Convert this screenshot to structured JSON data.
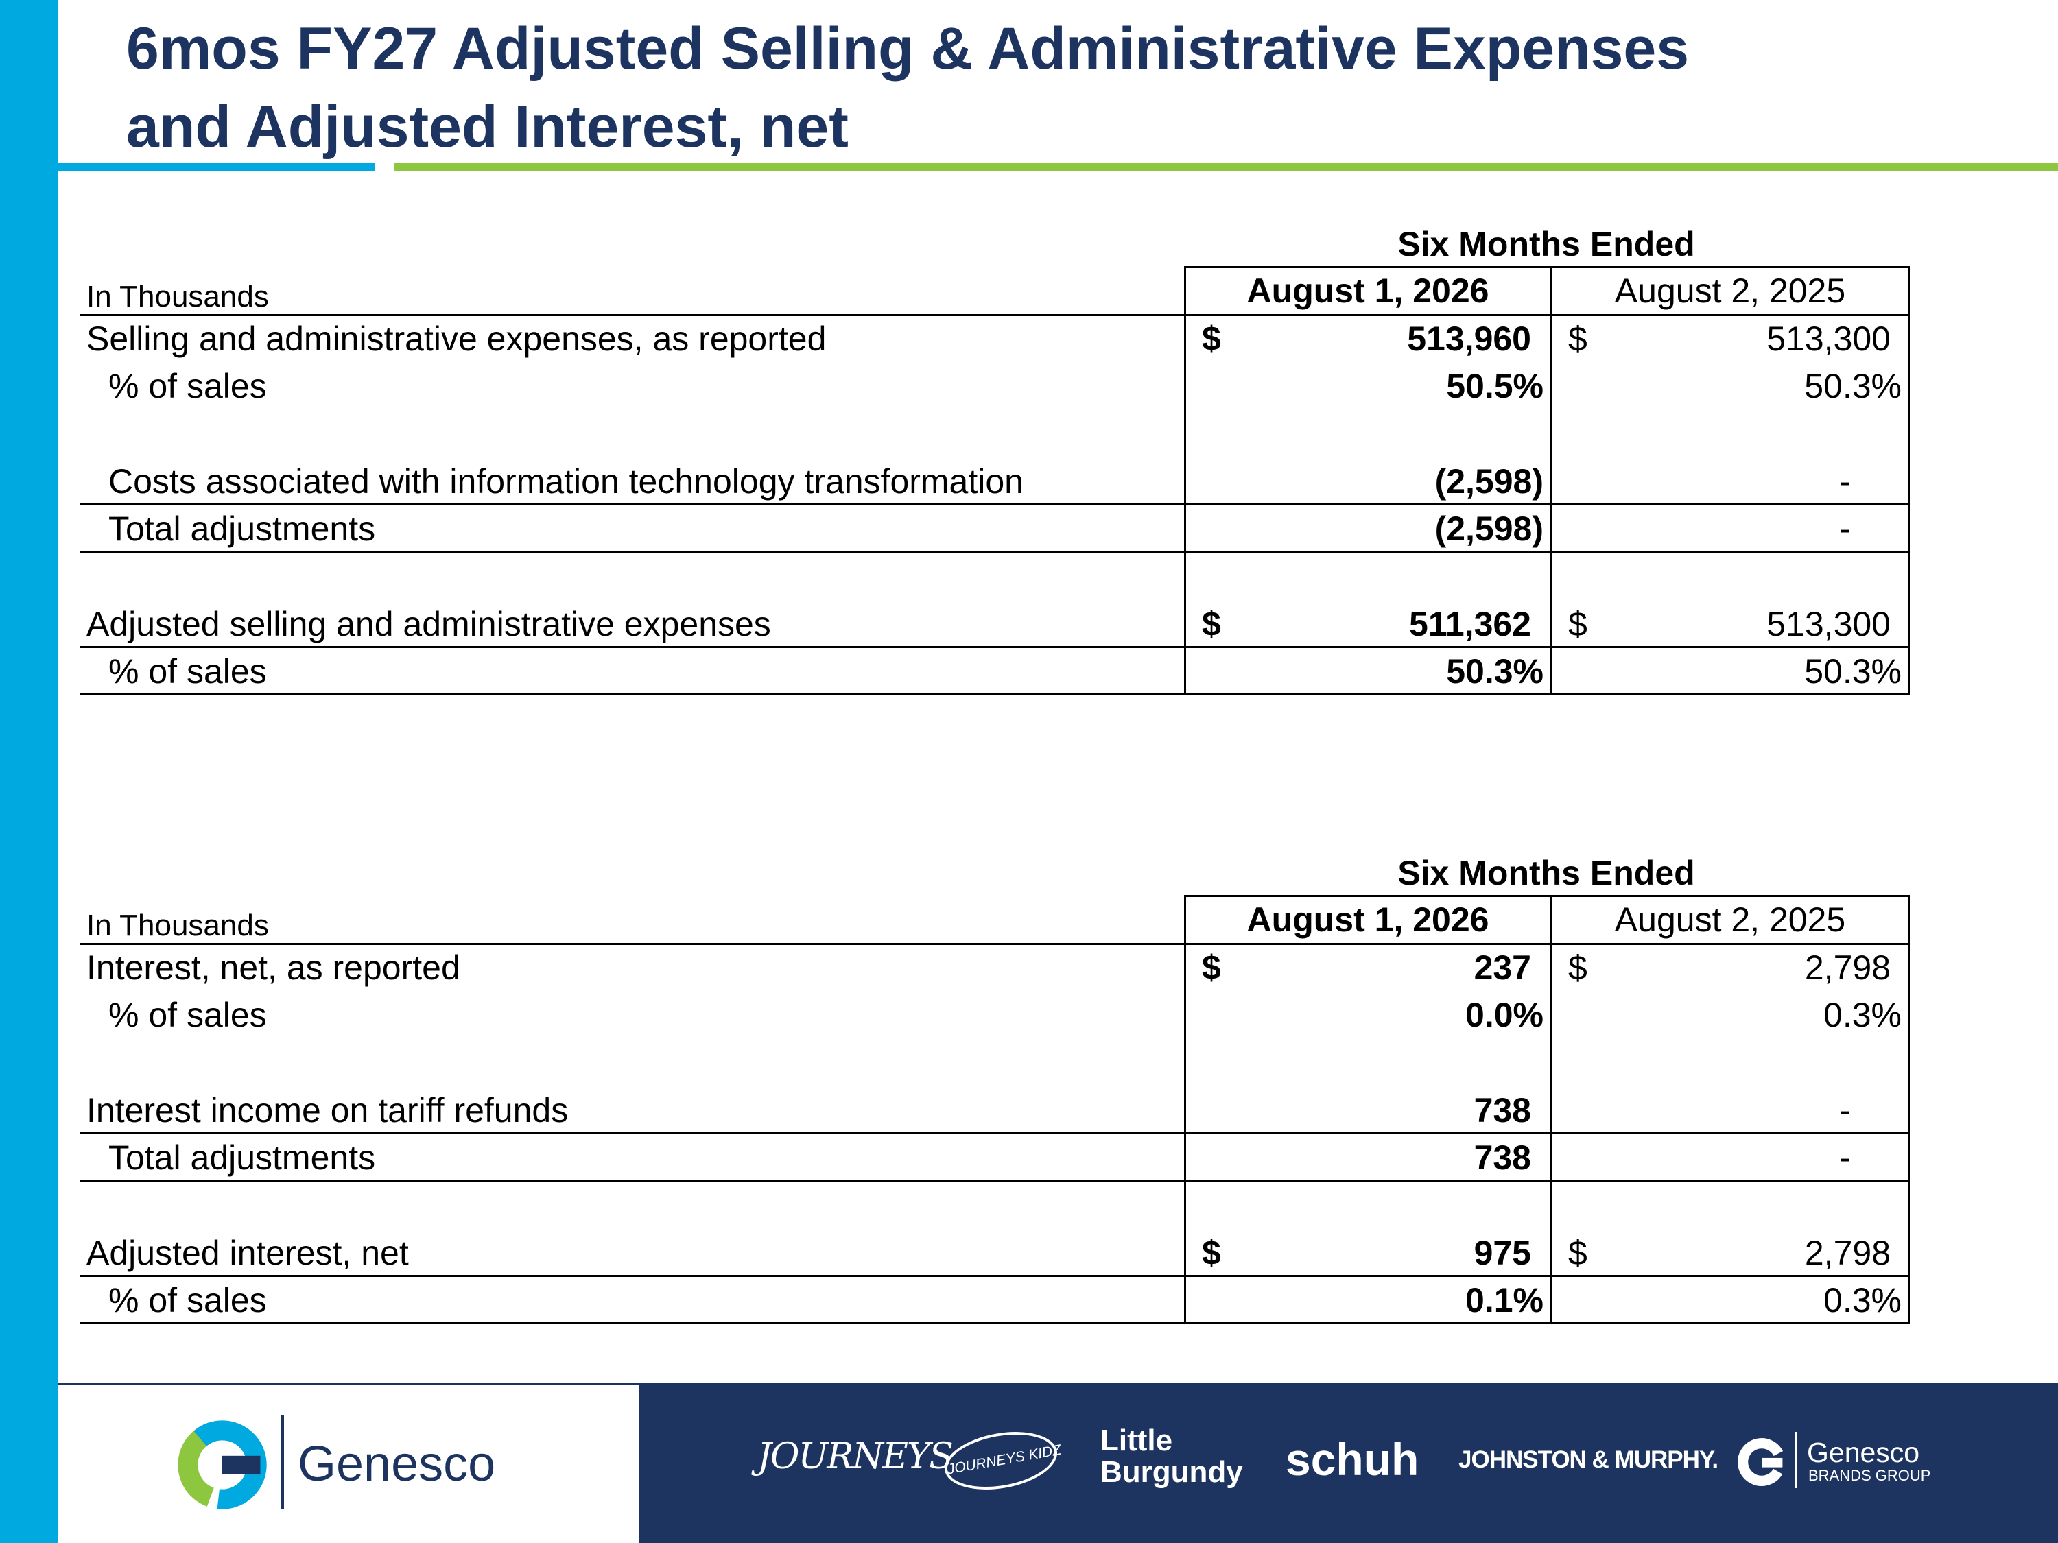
{
  "header": {
    "title_line1": "6mos FY27 Adjusted Selling & Administrative Expenses",
    "title_line2": "and Adjusted Interest, net"
  },
  "tables": [
    {
      "group_header": "Six Months Ended",
      "units": "In Thousands",
      "col1": "August 1, 2026",
      "col2": "August 2, 2025",
      "rows": [
        {
          "label": "Selling and administrative expenses, as reported",
          "cur1": "$",
          "v1": "513,960",
          "cur2": "$",
          "v2": "513,300"
        },
        {
          "label": "% of sales",
          "cur1": "",
          "v1": "50.5%",
          "cur2": "",
          "v2": "50.3%"
        },
        {
          "label": "Costs associated with information technology transformation",
          "cur1": "",
          "v1": "(2,598)",
          "cur2": "",
          "v2": "-"
        },
        {
          "label": "Total adjustments",
          "cur1": "",
          "v1": "(2,598)",
          "cur2": "",
          "v2": "-"
        },
        {
          "label": "Adjusted selling and administrative expenses",
          "cur1": "$",
          "v1": "511,362",
          "cur2": "$",
          "v2": "513,300"
        },
        {
          "label": "% of sales",
          "cur1": "",
          "v1": "50.3%",
          "cur2": "",
          "v2": "50.3%"
        }
      ]
    },
    {
      "group_header": "Six Months Ended",
      "units": "In Thousands",
      "col1": "August 1, 2026",
      "col2": "August 2, 2025",
      "rows": [
        {
          "label": "Interest, net, as reported",
          "cur1": "$",
          "v1": "237",
          "cur2": "$",
          "v2": "2,798"
        },
        {
          "label": "% of sales",
          "cur1": "",
          "v1": "0.0%",
          "cur2": "",
          "v2": "0.3%"
        },
        {
          "label": "Interest income on tariff refunds",
          "cur1": "",
          "v1": "738",
          "cur2": "",
          "v2": "-"
        },
        {
          "label": "Total adjustments",
          "cur1": "",
          "v1": "738",
          "cur2": "",
          "v2": "-"
        },
        {
          "label": "Adjusted interest, net",
          "cur1": "$",
          "v1": "975",
          "cur2": "$",
          "v2": "2,798"
        },
        {
          "label": "% of sales",
          "cur1": "",
          "v1": "0.1%",
          "cur2": "",
          "v2": "0.3%"
        }
      ]
    }
  ],
  "footer": {
    "company_name": "Genesco",
    "brands": {
      "journeys": "JOURNEYS",
      "journeys_kidz": "JOURNEYS KIDZ",
      "little_burgundy_line1": "Little",
      "little_burgundy_line2": "Burgundy",
      "schuh": "schuh",
      "johnston_murphy": "JOHNSTON & MURPHY.",
      "genesco_brands_line1": "Genesco",
      "genesco_brands_line2": "BRANDS GROUP"
    },
    "colors": {
      "navy": "#1d3461",
      "blue": "#00a9e0",
      "green": "#8dc63f"
    }
  }
}
